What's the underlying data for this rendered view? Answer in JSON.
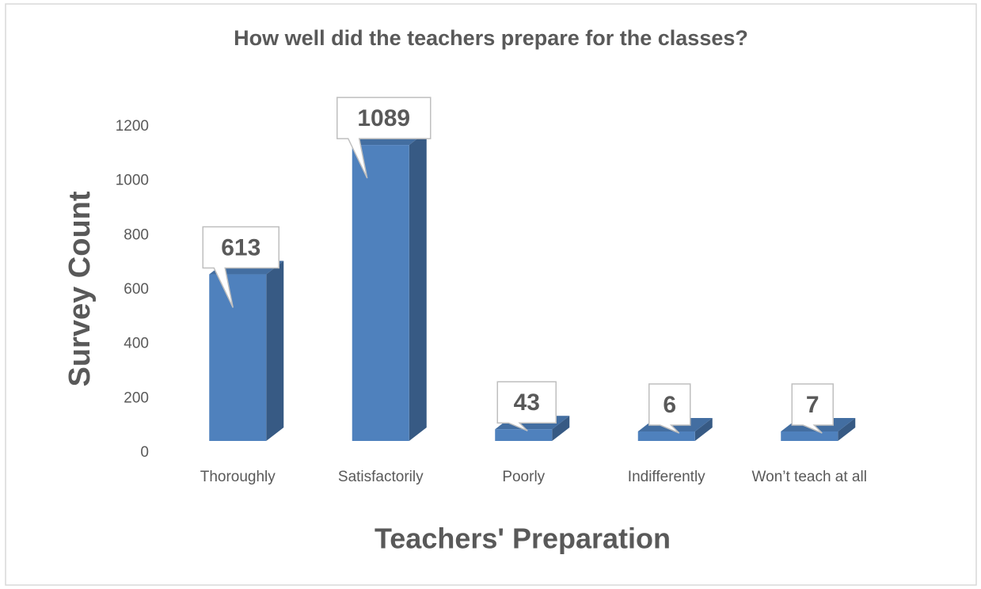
{
  "chart_data": {
    "type": "bar3d",
    "title": "How well did the teachers prepare for the classes?",
    "x_label": "Teachers' Preparation",
    "y_label": "Survey Count",
    "categories": [
      "Thoroughly",
      "Satisfactorily",
      "Poorly",
      "Indifferently",
      "Won’t teach at all"
    ],
    "values": [
      613,
      1089,
      43,
      6,
      7
    ],
    "color": "#4f81bd",
    "ylim": [
      0,
      1200
    ],
    "yticks": [
      0,
      200,
      400,
      600,
      800,
      1000,
      1200
    ],
    "grid": false
  }
}
